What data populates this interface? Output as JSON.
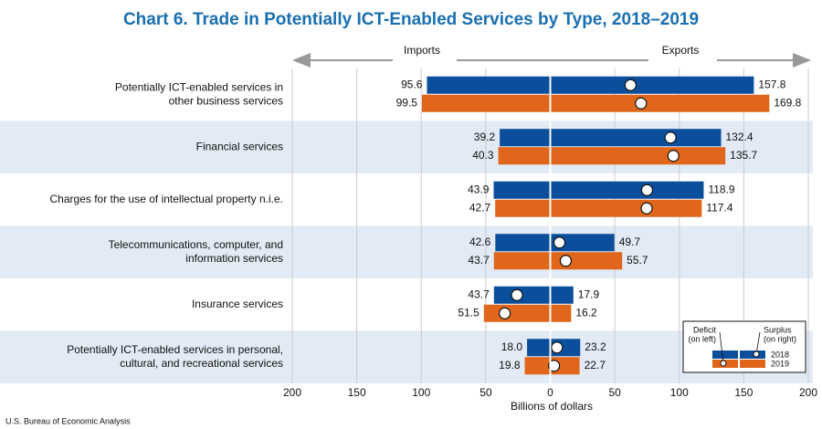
{
  "chart_data": {
    "type": "butterfly",
    "title": "Chart 6. Trade in Potentially ICT-Enabled Services by Type, 2018–2019",
    "left_header": "Imports",
    "right_header": "Exports",
    "xlabel": "Billions of dollars",
    "source": "U.S. Bureau of Economic Analysis",
    "categories": [
      [
        "Potentially ICT-enabled services in",
        "other business services"
      ],
      [
        "Financial services"
      ],
      [
        "Charges for the use of intellectual property n.i.e."
      ],
      [
        "Telecommunications, computer, and",
        "information services"
      ],
      [
        "Insurance services"
      ],
      [
        "Potentially ICT-enabled services in personal,",
        "cultural, and recreational services"
      ]
    ],
    "series": [
      {
        "name": "2018",
        "color": "#0b4f9c",
        "imports": [
          95.6,
          39.2,
          43.9,
          42.6,
          43.7,
          18.0
        ],
        "import_labels": [
          "95.6",
          "39.2",
          "43.9",
          "42.6",
          "43.7",
          "18.0"
        ],
        "exports": [
          157.8,
          132.4,
          118.9,
          49.7,
          17.9,
          23.2
        ],
        "balance": [
          62.2,
          93.2,
          75.0,
          7.1,
          -25.8,
          5.2
        ]
      },
      {
        "name": "2019",
        "color": "#e0661b",
        "imports": [
          99.5,
          40.3,
          42.7,
          43.7,
          51.5,
          19.8
        ],
        "import_labels": [
          "99.5",
          "40.3",
          "42.7",
          "43.7",
          "51.5",
          "19.8"
        ],
        "exports": [
          169.8,
          135.7,
          117.4,
          55.7,
          16.2,
          22.7
        ],
        "balance": [
          70.3,
          95.4,
          74.7,
          12.0,
          -35.3,
          2.9
        ]
      }
    ],
    "xlim": [
      -200,
      200
    ],
    "xticks": [
      {
        "value": -200,
        "label": "200"
      },
      {
        "value": -150,
        "label": "150"
      },
      {
        "value": -100,
        "label": "100"
      },
      {
        "value": -50,
        "label": "50"
      },
      0,
      50,
      100,
      150,
      200
    ],
    "grid": true,
    "band_color": "#e2eaf5",
    "legend": {
      "deficit": [
        "Deficit",
        "(on left)"
      ],
      "surplus": [
        "Surplus",
        "(on right)"
      ]
    }
  }
}
